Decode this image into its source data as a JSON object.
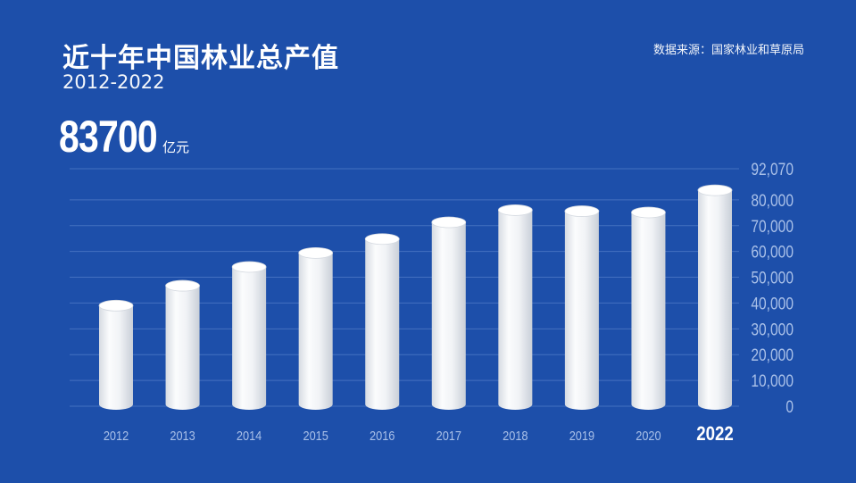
{
  "header": {
    "title": "近十年中国林业总产值",
    "subtitle": "2012-2022",
    "source": "数据来源：国家林业和草原局",
    "highlight_value": "83700",
    "highlight_unit": "亿元"
  },
  "colors": {
    "background": "#1d4faa",
    "bar": "#f4f6f9",
    "bar_shade": "#d4d9e0",
    "grid": "#5f86cf",
    "axis_text": "#a9c0e8"
  },
  "chart_data": {
    "type": "bar",
    "title": "近十年中国林业总产值",
    "xlabel": "",
    "ylabel": "",
    "categories": [
      "2012",
      "2013",
      "2014",
      "2015",
      "2016",
      "2017",
      "2018",
      "2019",
      "2020",
      "2022"
    ],
    "values": [
      39000,
      46700,
      54000,
      59400,
      64800,
      71300,
      76000,
      75600,
      75100,
      83700
    ],
    "ylim": [
      0,
      92070
    ],
    "yticks": [
      0,
      10000,
      20000,
      30000,
      40000,
      50000,
      60000,
      70000,
      80000,
      92070
    ],
    "ytick_labels": [
      "0",
      "10,000",
      "20,000",
      "30,000",
      "40,000",
      "50,000",
      "60,000",
      "70,000",
      "80,000",
      "92,070"
    ],
    "highlight_category": "2022",
    "grid": true,
    "y_axis_side": "right"
  }
}
